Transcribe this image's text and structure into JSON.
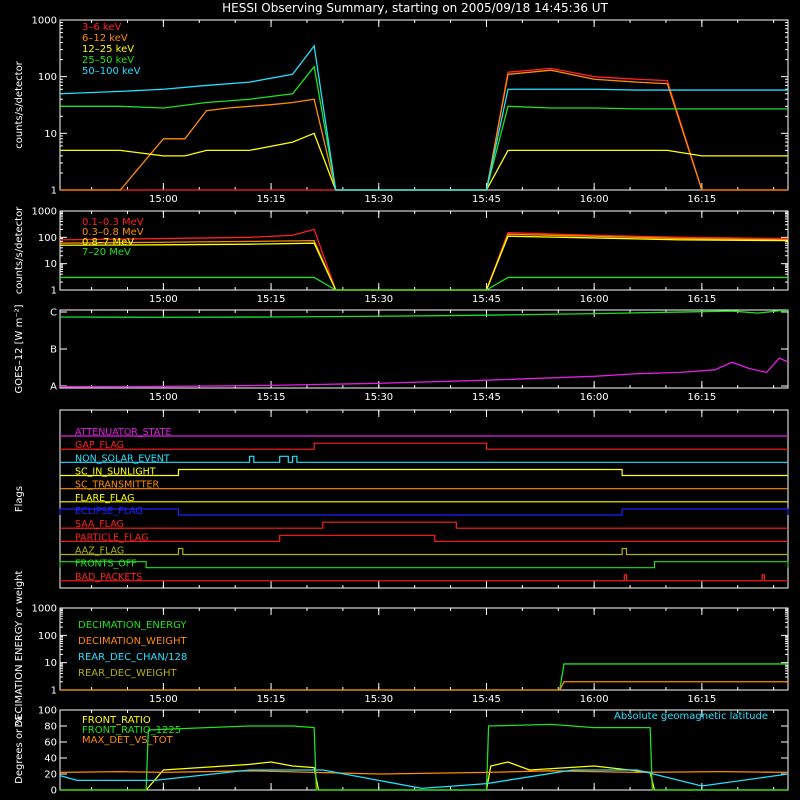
{
  "title": "HESSI Observing Summary, starting on 2005/09/18 14:45:36 UT",
  "time_ticks": [
    "15:00",
    "15:15",
    "15:30",
    "15:45",
    "16:00",
    "16:15"
  ],
  "colors": {
    "red": "#ff2020",
    "orange": "#ff8c00",
    "yellow": "#ffff00",
    "green": "#20e020",
    "cyan": "#20e0ff",
    "magenta": "#e020e0",
    "blue": "#2020ff",
    "olive": "#b0b000",
    "white": "#ffffff"
  },
  "chart_data": [
    {
      "type": "line",
      "panel": "lowE",
      "ylabel": "counts/s/detector",
      "yscale": "log",
      "ylim": [
        1,
        1000
      ],
      "yticks": [
        "1",
        "10",
        "100",
        "1000"
      ],
      "series": [
        {
          "name": "3–6 keV",
          "color": "#ff2020",
          "x": [
            14.76,
            14.9,
            15.0,
            15.1,
            15.2,
            15.3,
            15.35,
            15.4,
            15.5,
            15.58,
            15.75,
            15.8,
            15.9,
            16.0,
            16.1,
            16.17,
            16.25,
            16.35,
            16.45
          ],
          "y": [
            1,
            1,
            1,
            1,
            1,
            1,
            1,
            1,
            1,
            1,
            1,
            120,
            140,
            100,
            90,
            85,
            1,
            1,
            1
          ]
        },
        {
          "name": "6–12 keV",
          "color": "#ff8c00",
          "x": [
            14.76,
            14.9,
            15.0,
            15.05,
            15.1,
            15.15,
            15.2,
            15.25,
            15.3,
            15.35,
            15.4,
            15.5,
            15.58,
            15.75,
            15.8,
            15.9,
            16.0,
            16.1,
            16.17,
            16.25,
            16.35,
            16.45
          ],
          "y": [
            1,
            1,
            8,
            8,
            25,
            28,
            30,
            32,
            35,
            40,
            1,
            1,
            1,
            1,
            110,
            130,
            90,
            80,
            75,
            1,
            1,
            1
          ]
        },
        {
          "name": "12–25 keV",
          "color": "#ffff00",
          "x": [
            14.76,
            14.9,
            15.0,
            15.05,
            15.1,
            15.2,
            15.3,
            15.35,
            15.4,
            15.5,
            15.58,
            15.75,
            15.8,
            15.9,
            16.0,
            16.1,
            16.17,
            16.25,
            16.35,
            16.45
          ],
          "y": [
            5,
            5,
            4,
            4,
            5,
            5,
            7,
            10,
            1,
            1,
            1,
            1,
            5,
            5,
            5,
            5,
            5,
            4,
            4,
            4
          ]
        },
        {
          "name": "25–50 keV",
          "color": "#20e020",
          "x": [
            14.76,
            14.9,
            15.0,
            15.1,
            15.2,
            15.3,
            15.35,
            15.4,
            15.5,
            15.58,
            15.75,
            15.8,
            15.9,
            16.0,
            16.1,
            16.2,
            16.3,
            16.45
          ],
          "y": [
            30,
            30,
            28,
            35,
            40,
            50,
            150,
            1,
            1,
            1,
            1,
            30,
            28,
            28,
            27,
            27,
            27,
            27
          ]
        },
        {
          "name": "50–100 keV",
          "color": "#20e0ff",
          "x": [
            14.76,
            14.9,
            15.0,
            15.1,
            15.2,
            15.3,
            15.35,
            15.4,
            15.5,
            15.58,
            15.75,
            15.8,
            15.9,
            16.0,
            16.1,
            16.2,
            16.3,
            16.45
          ],
          "y": [
            50,
            55,
            60,
            70,
            80,
            110,
            350,
            1,
            1,
            1,
            1,
            60,
            60,
            60,
            58,
            58,
            58,
            58
          ]
        }
      ]
    },
    {
      "type": "line",
      "panel": "highE",
      "ylabel": "counts/s/detector",
      "yscale": "log",
      "ylim": [
        1,
        1000
      ],
      "yticks": [
        "1",
        "10",
        "100",
        "1000"
      ],
      "series": [
        {
          "name": "0.1–0.3 MeV",
          "color": "#ff2020",
          "x": [
            14.76,
            15.0,
            15.2,
            15.3,
            15.35,
            15.4,
            15.58,
            15.75,
            15.8,
            16.0,
            16.2,
            16.45
          ],
          "y": [
            80,
            90,
            100,
            120,
            200,
            1,
            1,
            1,
            150,
            120,
            100,
            90
          ]
        },
        {
          "name": "0.3–0.8 MeV",
          "color": "#ff8c00",
          "x": [
            14.76,
            15.0,
            15.2,
            15.35,
            15.4,
            15.58,
            15.75,
            15.8,
            16.0,
            16.2,
            16.45
          ],
          "y": [
            60,
            65,
            70,
            75,
            1,
            1,
            1,
            130,
            110,
            90,
            80
          ]
        },
        {
          "name": "0.8–7 MeV",
          "color": "#ffff00",
          "x": [
            14.76,
            15.0,
            15.2,
            15.35,
            15.4,
            15.58,
            15.75,
            15.8,
            16.0,
            16.2,
            16.45
          ],
          "y": [
            50,
            52,
            55,
            60,
            1,
            1,
            1,
            110,
            95,
            80,
            75
          ]
        },
        {
          "name": "7–20 MeV",
          "color": "#20e020",
          "x": [
            14.76,
            15.0,
            15.2,
            15.35,
            15.4,
            15.58,
            15.75,
            15.8,
            16.0,
            16.2,
            16.45
          ],
          "y": [
            3,
            3,
            3,
            3,
            1,
            1,
            1,
            3,
            3,
            3,
            3
          ]
        }
      ]
    },
    {
      "type": "line",
      "panel": "goes",
      "ylabel": "GOES–12 [W m⁻²]",
      "ylim": [
        0,
        3
      ],
      "yticks": [
        "A",
        "B",
        "C"
      ],
      "series": [
        {
          "color": "#20e020",
          "x": [
            14.76,
            15.0,
            15.25,
            15.5,
            15.75,
            16.0,
            16.2,
            16.32,
            16.38,
            16.43,
            16.45
          ],
          "y": [
            2.73,
            2.72,
            2.73,
            2.76,
            2.8,
            2.86,
            2.92,
            2.96,
            2.88,
            2.97,
            2.98
          ]
        },
        {
          "color": "#e020e0",
          "x": [
            14.76,
            15.0,
            15.25,
            15.5,
            15.75,
            16.0,
            16.1,
            16.2,
            16.28,
            16.32,
            16.36,
            16.4,
            16.43,
            16.45
          ],
          "y": [
            0.05,
            0.06,
            0.1,
            0.18,
            0.3,
            0.45,
            0.55,
            0.6,
            0.7,
            0.99,
            0.75,
            0.6,
            1.15,
            1.0
          ]
        }
      ]
    },
    {
      "type": "line",
      "panel": "flags",
      "ylabel": "Flags",
      "series": [
        {
          "name": "ATTENUATOR_STATE",
          "color": "#e020e0",
          "on": []
        },
        {
          "name": "GAP_FLAG",
          "color": "#ff2020",
          "on": [
            [
              15.35,
              15.75
            ]
          ]
        },
        {
          "name": "NON_SOLAR_EVENT",
          "color": "#20e0ff",
          "on": [
            [
              15.2,
              15.21
            ],
            [
              15.27,
              15.29
            ],
            [
              15.3,
              15.31
            ]
          ]
        },
        {
          "name": "SC_IN_SUNLIGHT",
          "color": "#ffff00",
          "on": [
            [
              15.035,
              16.065
            ]
          ]
        },
        {
          "name": "SC_TRANSMITTER",
          "color": "#ff8c00",
          "on": []
        },
        {
          "name": "FLARE_FLAG",
          "color": "#ffff00",
          "on": []
        },
        {
          "name": "ECLIPSE_FLAG",
          "color": "#2020ff",
          "on": [
            [
              14.76,
              15.035
            ],
            [
              16.065,
              16.45
            ]
          ]
        },
        {
          "name": "SAA_FLAG",
          "color": "#ff2020",
          "on": [
            [
              15.37,
              15.68
            ]
          ]
        },
        {
          "name": "PARTICLE_FLAG",
          "color": "#ff2020",
          "on": [
            [
              15.27,
              15.63
            ]
          ]
        },
        {
          "name": "AAZ_FLAG",
          "color": "#b0b000",
          "on": [
            [
              15.035,
              15.045
            ],
            [
              16.065,
              16.075
            ]
          ]
        },
        {
          "name": "FRONTS_OFF",
          "color": "#20e020",
          "on": [
            [
              14.76,
              14.96
            ],
            [
              16.14,
              16.45
            ]
          ]
        },
        {
          "name": "BAD_PACKETS",
          "color": "#ff2020",
          "on": [
            [
              16.07,
              16.075
            ],
            [
              16.39,
              16.395
            ]
          ]
        }
      ]
    },
    {
      "type": "line",
      "panel": "decim",
      "ylabel": "DECIMATION ENERGY or weight",
      "yscale": "log",
      "ylim": [
        1,
        1000
      ],
      "yticks": [
        "1",
        "10",
        "100",
        "1000"
      ],
      "series": [
        {
          "name": "DECIMATION_ENERGY",
          "color": "#20e020",
          "x": [
            14.76,
            15.92,
            15.93,
            16.45
          ],
          "y": [
            1,
            1,
            9,
            9
          ]
        },
        {
          "name": "DECIMATION_WEIGHT",
          "color": "#ff8c00",
          "x": [
            14.76,
            15.92,
            15.93,
            16.45
          ],
          "y": [
            1,
            1,
            2,
            2
          ]
        },
        {
          "name": "REAR_DEC_CHAN/128",
          "color": "#20e0ff",
          "x": [],
          "y": []
        },
        {
          "name": "REAR_DEC_WEIGHT",
          "color": "#b0b000",
          "x": [],
          "y": []
        }
      ]
    },
    {
      "type": "line",
      "panel": "ratio",
      "ylabel": "Degrees or %",
      "ylim": [
        0,
        100
      ],
      "yticks": [
        "0",
        "20",
        "40",
        "60",
        "80",
        "100"
      ],
      "annotation": "Absolute geomagnetic latitude",
      "series": [
        {
          "name": "FRONT_RATIO",
          "color": "#ffff00",
          "x": [
            14.76,
            14.96,
            15.0,
            15.2,
            15.25,
            15.3,
            15.35,
            15.36,
            15.75,
            15.76,
            15.8,
            15.85,
            16.0,
            16.13,
            16.14,
            16.45
          ],
          "y": [
            0,
            0,
            25,
            32,
            35,
            30,
            28,
            0,
            0,
            30,
            35,
            25,
            30,
            22,
            0,
            0
          ]
        },
        {
          "name": "FRONT_RATIO_1225",
          "color": "#20e020",
          "x": [
            14.76,
            14.96,
            14.965,
            15.1,
            15.2,
            15.3,
            15.35,
            15.355,
            15.75,
            15.755,
            15.9,
            16.0,
            16.13,
            16.135,
            16.45
          ],
          "y": [
            0,
            0,
            75,
            78,
            80,
            80,
            78,
            0,
            0,
            80,
            82,
            78,
            78,
            0,
            0
          ]
        },
        {
          "name": "MAX_DET_VS_TOT",
          "color": "#ff8c00",
          "x": [
            14.76,
            14.9,
            15.0,
            15.2,
            15.35,
            15.5,
            15.75,
            15.9,
            16.1,
            16.3,
            16.45
          ],
          "y": [
            22,
            23,
            22,
            24,
            22,
            20,
            22,
            24,
            22,
            23,
            22
          ]
        },
        {
          "name": "Absolute geomagnetic latitude",
          "color": "#20e0ff",
          "x": [
            14.76,
            14.8,
            14.98,
            15.2,
            15.37,
            15.6,
            15.75,
            15.95,
            16.1,
            16.25,
            16.45
          ],
          "y": [
            18,
            12,
            12,
            25,
            25,
            2,
            8,
            25,
            25,
            5,
            20
          ]
        }
      ]
    }
  ]
}
